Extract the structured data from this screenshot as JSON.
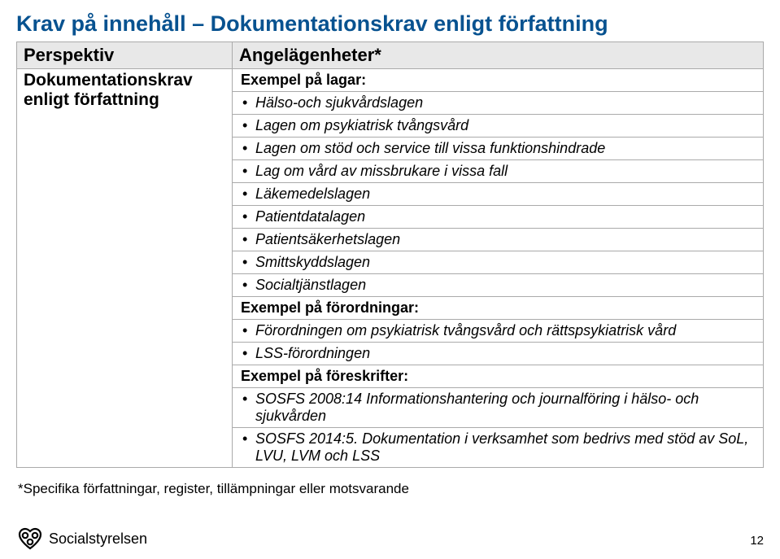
{
  "page": {
    "title": "Krav på innehåll – Dokumentationskrav enligt författning",
    "footnote": "*Specifika författningar, register, tillämpningar eller motsvarande",
    "pageNumber": "12",
    "logoText": "Socialstyrelsen"
  },
  "table": {
    "headers": {
      "left": "Perspektiv",
      "right": "Angelägenheter*"
    },
    "leftCell": "Dokumentationskrav enligt författning",
    "sections": [
      {
        "heading": "Exempel på lagar:",
        "items": [
          "Hälso-och sjukvårdslagen",
          "Lagen om psykiatrisk tvångsvård",
          "Lagen om stöd och service till vissa funktionshindrade",
          "Lag om vård av missbrukare i vissa fall",
          "Läkemedelslagen",
          "Patientdatalagen",
          "Patientsäkerhetslagen",
          "Smittskyddslagen",
          "Socialtjänstlagen"
        ]
      },
      {
        "heading": "Exempel på förordningar:",
        "items": [
          "Förordningen om psykiatrisk tvångsvård och rättspsykiatrisk vård",
          "LSS-förordningen"
        ]
      },
      {
        "heading": "Exempel på föreskrifter:",
        "items": [
          "SOSFS 2008:14 Informationshantering och journalföring i hälso- och sjukvården",
          "SOSFS 2014:5. Dokumentation i verksamhet som bedrivs med stöd av SoL, LVU, LVM och LSS"
        ]
      }
    ]
  },
  "style": {
    "titleColor": "#075290",
    "headerBg": "#e8e8e8",
    "borderColor": "#aaaaaa",
    "titleFontSize": 27,
    "headerFontSize": 22,
    "bodyFontSize": 18
  }
}
